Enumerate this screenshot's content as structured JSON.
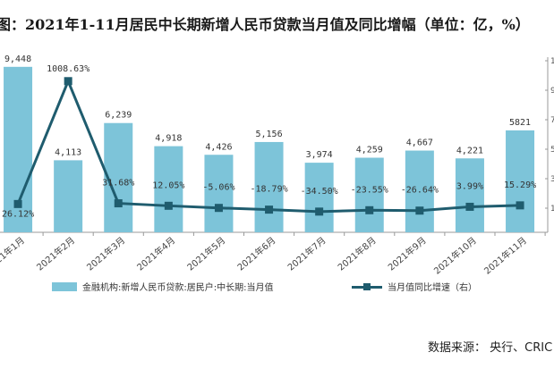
{
  "title": "图：2021年1-11月居民中长期新增人民币贷款当月值及同比增幅（单位：亿，%）",
  "source": "数据来源： 央行、CRIC",
  "chart_data": {
    "type": "bar",
    "categories": [
      "2021年1月",
      "2021年2月",
      "2021年3月",
      "2021年4月",
      "2021年5月",
      "2021年6月",
      "2021年7月",
      "2021年8月",
      "2021年9月",
      "2021年10月",
      "2021年11月"
    ],
    "series": [
      {
        "name": "金融机构:新增人民币贷款:居民户:中长期:当月值",
        "type": "bar",
        "color": "#7dc4d9",
        "values": [
          9448,
          4113,
          6239,
          4918,
          4426,
          5156,
          3974,
          4259,
          4667,
          4221,
          5821
        ],
        "labels": [
          "9,448",
          "4,113",
          "6,239",
          "4,918",
          "4,426",
          "5,156",
          "3,974",
          "4,259",
          "4,667",
          "4,221",
          "5821"
        ]
      },
      {
        "name": "当月值同比增速（右）",
        "type": "line",
        "axis": "right",
        "color": "#1f5c6e",
        "values": [
          26.12,
          1008.63,
          31.68,
          12.05,
          -5.06,
          -18.79,
          -34.5,
          -23.55,
          -26.64,
          3.99,
          15.29
        ],
        "labels": [
          "26.12%",
          "1008.63%",
          "31.68%",
          "12.05%",
          "-5.06%",
          "-18.79%",
          "-34.50%",
          "-23.55%",
          "-26.64%",
          "3.99%",
          "15.29%"
        ]
      }
    ],
    "ylim_left": [
      0,
      10000
    ],
    "ylim_right": [
      -200,
      1200
    ],
    "right_ticks": [
      "10",
      "9",
      "7",
      "5",
      "3",
      "1"
    ],
    "legend_position": "bottom",
    "grid": false
  }
}
